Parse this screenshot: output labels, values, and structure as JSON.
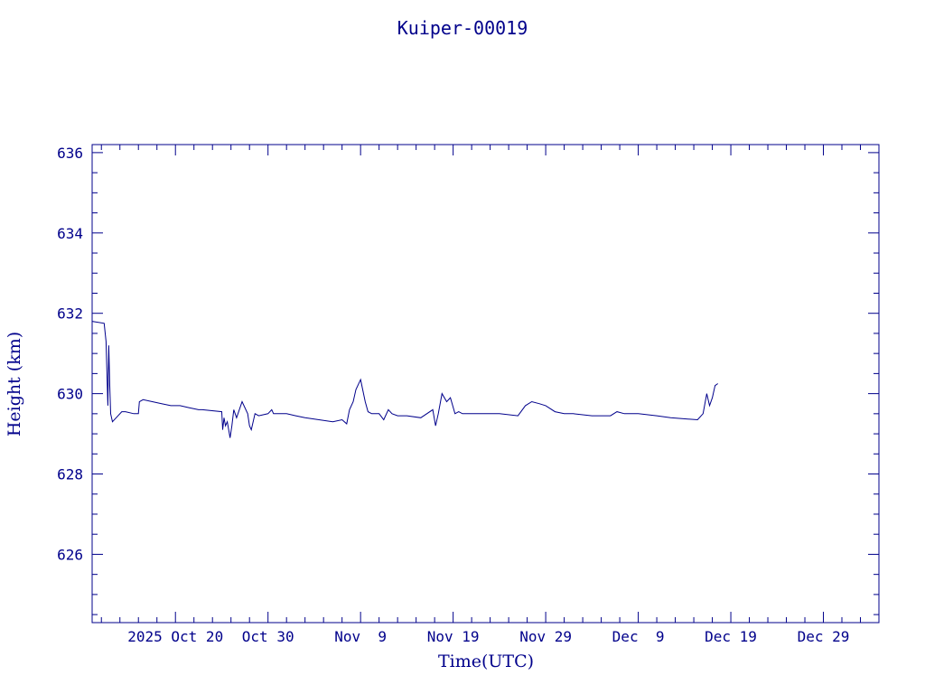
{
  "chart_data": {
    "type": "line",
    "title": "Kuiper-00019",
    "xlabel": "Time(UTC)",
    "ylabel": "Height (km)",
    "color": "#00008b",
    "ylim": [
      624.3,
      636.2
    ],
    "xlim_days": [
      0,
      85
    ],
    "x_ticks": [
      {
        "day": 9,
        "label": "2025 Oct 20"
      },
      {
        "day": 19,
        "label": "Oct 30"
      },
      {
        "day": 29,
        "label": "Nov  9"
      },
      {
        "day": 39,
        "label": "Nov 19"
      },
      {
        "day": 49,
        "label": "Nov 29"
      },
      {
        "day": 59,
        "label": "Dec  9"
      },
      {
        "day": 69,
        "label": "Dec 19"
      },
      {
        "day": 79,
        "label": "Dec 29"
      }
    ],
    "y_ticks": [
      626,
      628,
      630,
      632,
      634,
      636
    ],
    "grid": false,
    "series": [
      {
        "x": [
          0.0,
          1.3,
          1.5,
          1.7,
          1.8,
          1.9,
          2.0,
          2.2,
          2.6,
          3.2,
          3.6,
          4.5,
          5.0,
          5.1,
          5.5,
          6.5,
          7.5,
          8.5,
          9.5,
          10.5,
          11.5,
          11.9,
          14.0,
          14.1,
          14.25,
          14.4,
          14.6,
          14.9,
          15.1,
          15.3,
          15.6,
          16.2,
          16.8,
          17.0,
          17.2,
          17.6,
          18.0,
          19.0,
          19.4,
          19.6,
          20.0,
          21.0,
          22.0,
          23.0,
          24.5,
          26.0,
          27.0,
          27.5,
          27.8,
          28.2,
          28.5,
          29.0,
          29.5,
          29.8,
          30.2,
          31.0,
          31.5,
          32.0,
          32.4,
          33.0,
          34.0,
          35.5,
          36.8,
          37.1,
          37.4,
          37.8,
          38.3,
          38.7,
          39.2,
          39.6,
          40.0,
          42.0,
          44.0,
          46.0,
          46.8,
          47.5,
          48.3,
          49.0,
          50.0,
          51.0,
          52.0,
          54.0,
          56.0,
          56.7,
          57.5,
          59.0,
          61.0,
          62.5,
          65.4,
          66.0,
          66.4,
          66.7,
          67.0,
          67.3,
          67.6
        ],
        "y": [
          631.8,
          631.75,
          631.3,
          629.7,
          631.2,
          630.2,
          629.5,
          629.3,
          629.4,
          629.55,
          629.55,
          629.5,
          629.5,
          629.8,
          629.85,
          629.8,
          629.75,
          629.7,
          629.7,
          629.65,
          629.6,
          629.6,
          629.55,
          629.1,
          629.4,
          629.2,
          629.3,
          628.9,
          629.2,
          629.6,
          629.4,
          629.8,
          629.5,
          629.2,
          629.1,
          629.5,
          629.45,
          629.5,
          629.6,
          629.5,
          629.5,
          629.5,
          629.45,
          629.4,
          629.35,
          629.3,
          629.35,
          629.25,
          629.6,
          629.8,
          630.1,
          630.35,
          629.8,
          629.55,
          629.5,
          629.5,
          629.35,
          629.6,
          629.5,
          629.45,
          629.45,
          629.4,
          629.6,
          629.2,
          629.5,
          630.0,
          629.8,
          629.9,
          629.5,
          629.55,
          629.5,
          629.5,
          629.5,
          629.45,
          629.7,
          629.8,
          629.75,
          629.7,
          629.55,
          629.5,
          629.5,
          629.45,
          629.45,
          629.55,
          629.5,
          629.5,
          629.45,
          629.4,
          629.35,
          629.5,
          630.0,
          629.7,
          629.9,
          630.2,
          630.25
        ]
      }
    ]
  }
}
